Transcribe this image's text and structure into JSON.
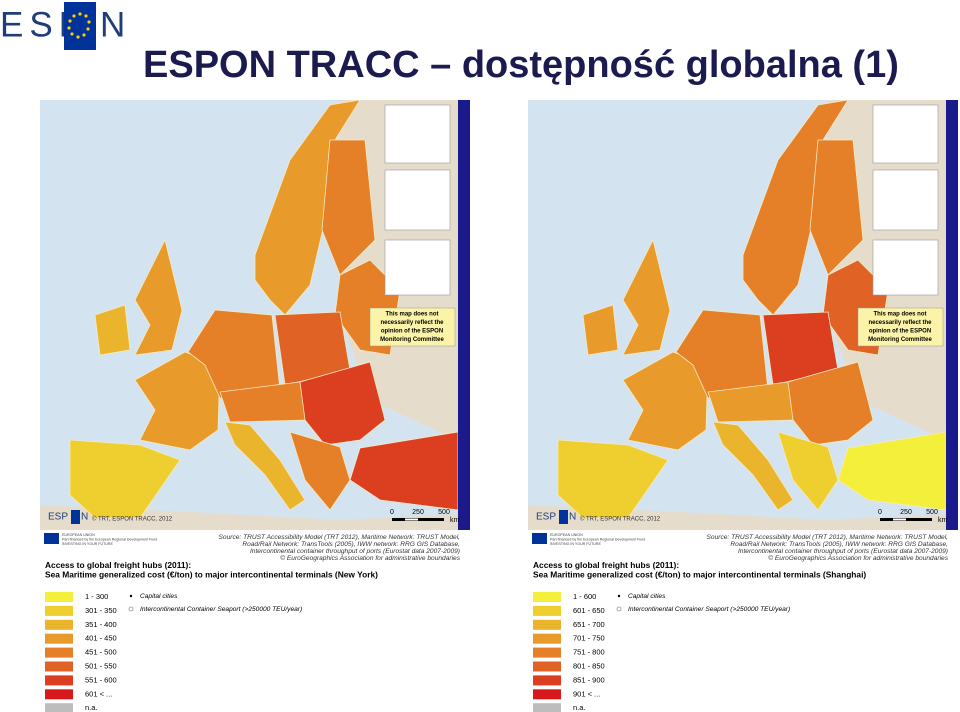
{
  "header": {
    "logo_left": "ESP",
    "logo_right": "N",
    "title": "ESPON TRACC – dostępność globalna (1)"
  },
  "panels": [
    {
      "note": [
        "This map does not",
        "necessarily reflect the",
        "opinion of the ESPON",
        "Monitoring Committee"
      ],
      "logo_left": "ESP",
      "logo_right": "N",
      "credit": "© TRT, ESPON TRACC, 2012",
      "scale": [
        "0",
        "250",
        "500",
        "km"
      ],
      "eu_text": [
        "EUROPEAN UNION",
        "Part-financed by the European Regional Development Fund",
        "INVESTING IN YOUR FUTURE"
      ],
      "source": [
        "Source: TRUST Accessibility Model (TRT 2012), Maritime Network: TRUST Model,",
        "Road/Rail Network: TransTools (2005), IWW network: RRG GIS Database,",
        "Intercontinental container throughput of ports (Eurostat data 2007-2009)",
        "© EuroGeographics Association for administrative boundaries"
      ],
      "legend_title": [
        "Access to global freight hubs (2011):",
        "Sea Maritime generalized cost (€/ton) to major intercontinental terminals (New York)"
      ],
      "classes": [
        {
          "label": "1 - 300",
          "color": "#f4ef3b"
        },
        {
          "label": "301 - 350",
          "color": "#efcf2f"
        },
        {
          "label": "351 - 400",
          "color": "#eab52c"
        },
        {
          "label": "401 - 450",
          "color": "#e89a2a"
        },
        {
          "label": "451 - 500",
          "color": "#e57f28"
        },
        {
          "label": "501 - 550",
          "color": "#e06225"
        },
        {
          "label": "551 - 600",
          "color": "#dc3f20"
        },
        {
          "label": "601 < ...",
          "color": "#d7191c"
        },
        {
          "label": "n.a.",
          "color": "#bdbdbd"
        }
      ],
      "symbols": [
        "Capital cities",
        "Intercontinental Container Seaport (>250000 TEU/year)"
      ]
    },
    {
      "note": [
        "This map does not",
        "necessarily reflect the",
        "opinion of the ESPON",
        "Monitoring Committee"
      ],
      "logo_left": "ESP",
      "logo_right": "N",
      "credit": "© TRT, ESPON TRACC, 2012",
      "scale": [
        "0",
        "250",
        "500",
        "km"
      ],
      "eu_text": [
        "EUROPEAN UNION",
        "Part-financed by the European Regional Development Fund",
        "INVESTING IN YOUR FUTURE"
      ],
      "source": [
        "Source: TRUST Accessibility Model (TRT 2012), Maritime Network: TRUST Model,",
        "Road/Rail Network: TransTools (2005), IWW network: RRG GIS Database,",
        "Intercontinental container throughput of ports (Eurostat data 2007-2009)",
        "© EuroGeographics Association for administrative boundaries"
      ],
      "legend_title": [
        "Access to global freight hubs (2011):",
        "Sea Maritime generalized cost (€/ton) to major intercontinental terminals (Shanghai)"
      ],
      "classes": [
        {
          "label": "1 - 600",
          "color": "#f4ef3b"
        },
        {
          "label": "601 - 650",
          "color": "#efcf2f"
        },
        {
          "label": "651 - 700",
          "color": "#eab52c"
        },
        {
          "label": "701 - 750",
          "color": "#e89a2a"
        },
        {
          "label": "751 - 800",
          "color": "#e57f28"
        },
        {
          "label": "801 - 850",
          "color": "#e06225"
        },
        {
          "label": "851 - 900",
          "color": "#dc3f20"
        },
        {
          "label": "901 < ...",
          "color": "#d7191c"
        },
        {
          "label": "n.a.",
          "color": "#bdbdbd"
        }
      ],
      "symbols": [
        "Capital cities",
        "Intercontinental Container Seaport (>250000 TEU/year)"
      ]
    }
  ]
}
